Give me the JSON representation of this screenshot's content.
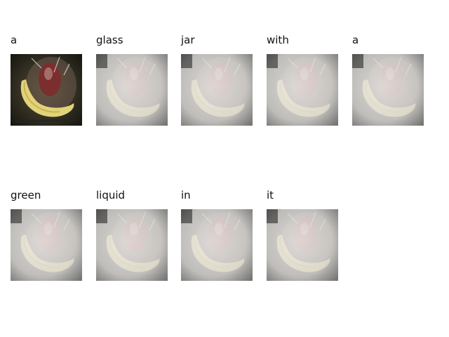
{
  "captions": [
    {
      "word": "a",
      "variant": "original"
    },
    {
      "word": "glass",
      "variant": "faded"
    },
    {
      "word": "jar",
      "variant": "faded"
    },
    {
      "word": "with",
      "variant": "faded"
    },
    {
      "word": "a",
      "variant": "faded"
    },
    {
      "word": "green",
      "variant": "faded"
    },
    {
      "word": "liquid",
      "variant": "faded"
    },
    {
      "word": "in",
      "variant": "faded"
    },
    {
      "word": "it",
      "variant": "faded"
    }
  ]
}
